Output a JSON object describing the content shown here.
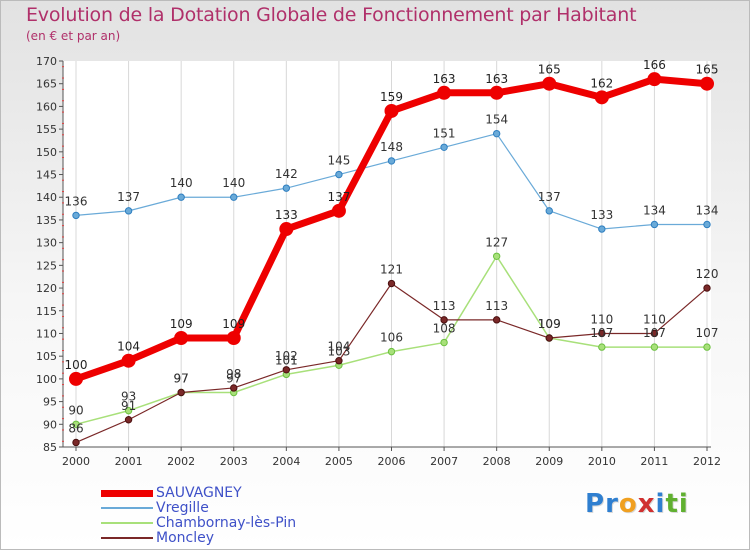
{
  "header": {
    "title": "Evolution de la Dotation Globale de Fonctionnement par Habitant",
    "subtitle": "(en € et par an)"
  },
  "logo": {
    "text": "Proxiti",
    "letters": [
      "P",
      "r",
      "o",
      "x",
      "i",
      "t",
      "i"
    ],
    "colors": [
      "#2f7fd0",
      "#2f7fd0",
      "#f0a020",
      "#d03030",
      "#2f7fd0",
      "#60b030",
      "#60b030"
    ]
  },
  "chart_data": {
    "type": "line",
    "title": "Evolution de la Dotation Globale de Fonctionnement par Habitant",
    "subtitle": "(en € et par an)",
    "xlabel": "",
    "ylabel": "",
    "ylim": [
      85,
      170
    ],
    "yticks": [
      85,
      90,
      95,
      100,
      105,
      110,
      115,
      120,
      125,
      130,
      135,
      140,
      145,
      150,
      155,
      160,
      165,
      170
    ],
    "grid": "vertical",
    "legend": "bottom-left",
    "categories": [
      "2000",
      "2001",
      "2002",
      "2003",
      "2004",
      "2005",
      "2006",
      "2007",
      "2008",
      "2009",
      "2010",
      "2011",
      "2012"
    ],
    "series": [
      {
        "name": "SAUVAGNEY",
        "color": "#ee0000",
        "width": 7,
        "values": [
          100,
          104,
          109,
          109,
          133,
          137,
          159,
          163,
          163,
          165,
          162,
          166,
          165
        ]
      },
      {
        "name": "Vregille",
        "color": "#6aaad8",
        "width": 1.2,
        "values": [
          136,
          137,
          140,
          140,
          142,
          145,
          148,
          151,
          154,
          137,
          133,
          134,
          134
        ]
      },
      {
        "name": "Chambornay-lès-Pin",
        "color": "#a8e07a",
        "width": 1.5,
        "values": [
          90,
          93,
          97,
          97,
          101,
          103,
          106,
          108,
          127,
          109,
          107,
          107,
          107
        ]
      },
      {
        "name": "Moncley",
        "color": "#7a2828",
        "width": 1.2,
        "values": [
          86,
          91,
          97,
          98,
          102,
          104,
          121,
          113,
          113,
          109,
          110,
          110,
          120
        ]
      }
    ]
  }
}
